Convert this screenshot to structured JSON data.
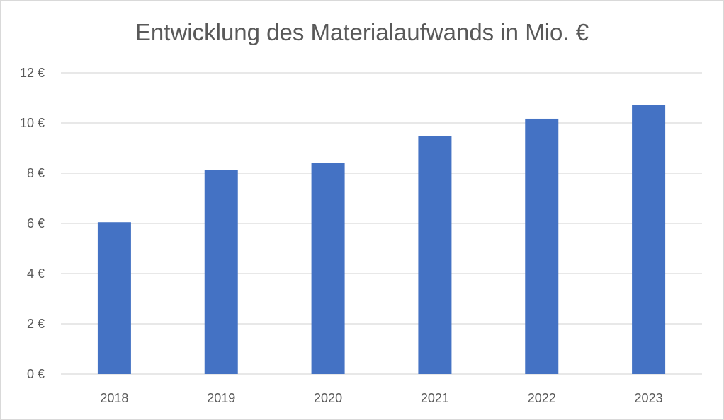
{
  "chart_data": {
    "type": "bar",
    "title": "Entwicklung des Materialaufwands in Mio. €",
    "categories": [
      "2018",
      "2019",
      "2020",
      "2021",
      "2022",
      "2023"
    ],
    "values": [
      6.05,
      8.12,
      8.42,
      9.48,
      10.17,
      10.73
    ],
    "xlabel": "",
    "ylabel": "",
    "ylim": [
      0,
      12
    ],
    "yticks": [
      0,
      2,
      4,
      6,
      8,
      10,
      12
    ],
    "ytick_labels": [
      "0 €",
      "2 €",
      "4 €",
      "6 €",
      "8 €",
      "10 €",
      "12 €"
    ],
    "grid": true,
    "legend": "none",
    "bar_color": "#4472C4",
    "grid_color": "#d9d9d9",
    "text_color": "#595959"
  }
}
